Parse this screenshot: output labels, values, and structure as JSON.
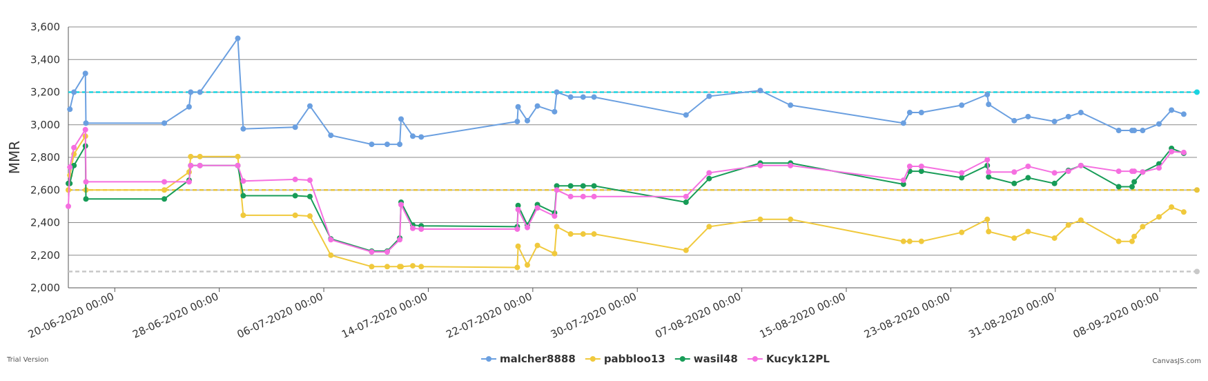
{
  "chart_data": {
    "type": "line",
    "y_title": "MMR",
    "x": [
      "16-06-2020 10:40",
      "16-06-2020 13:30",
      "16-06-2020 21:00",
      "17-06-2020 18:00",
      "17-06-2020 19:00",
      "23-06-2020 19:00",
      "25-06-2020 16:30",
      "25-06-2020 19:30",
      "26-06-2020 12:30",
      "29-06-2020 10:00",
      "29-06-2020 20:00",
      "03-07-2020 19:30",
      "04-07-2020 22:30",
      "06-07-2020 13:00",
      "09-07-2020 16:00",
      "10-07-2020 20:30",
      "11-07-2020 19:30",
      "11-07-2020 22:00",
      "12-07-2020 19:30",
      "13-07-2020 11:00",
      "20-07-2020 19:30",
      "20-07-2020 21:00",
      "21-07-2020 14:00",
      "22-07-2020 08:30",
      "23-07-2020 16:00",
      "23-07-2020 20:00",
      "24-07-2020 21:30",
      "25-07-2020 20:30",
      "26-07-2020 16:30",
      "02-08-2020 17:30",
      "04-08-2020 12:00",
      "08-08-2020 10:00",
      "10-08-2020 17:30",
      "19-08-2020 09:00",
      "19-08-2020 20:30",
      "20-08-2020 18:00",
      "23-08-2020 20:00",
      "25-08-2020 19:00",
      "25-08-2020 21:30",
      "27-08-2020 20:30",
      "28-08-2020 22:00",
      "30-08-2020 22:30",
      "01-09-2020 00:00",
      "01-09-2020 23:00",
      "04-09-2020 20:30",
      "05-09-2020 21:00",
      "06-09-2020 01:00",
      "06-09-2020 16:30",
      "07-09-2020 22:30",
      "08-09-2020 21:30",
      "09-09-2020 20:00"
    ],
    "xlim": [
      "16-06-2020 10:40",
      "10-09-2020 20:15"
    ],
    "xticks": [
      "20-06-2020 00:00",
      "28-06-2020 00:00",
      "06-07-2020 00:00",
      "14-07-2020 00:00",
      "22-07-2020 00:00",
      "30-07-2020 00:00",
      "07-08-2020 00:00",
      "15-08-2020 00:00",
      "23-08-2020 00:00",
      "31-08-2020 00:00",
      "08-09-2020 00:00"
    ],
    "ylim": [
      2000,
      3600
    ],
    "yticks": [
      {
        "value": 2000,
        "label": "2,000"
      },
      {
        "value": 2200,
        "label": "2,200"
      },
      {
        "value": 2400,
        "label": "2,400"
      },
      {
        "value": 2600,
        "label": "2,600"
      },
      {
        "value": 2800,
        "label": "2,800"
      },
      {
        "value": 3000,
        "label": "3,000"
      },
      {
        "value": 3200,
        "label": "3,200"
      },
      {
        "value": 3400,
        "label": "3,400"
      },
      {
        "value": 3600,
        "label": "3,600"
      }
    ],
    "grid": true,
    "legend": "bottom",
    "reference_lines": [
      {
        "value": 3200,
        "color": "#19d3e0"
      },
      {
        "value": 2600,
        "color": "#e8c43a"
      },
      {
        "value": 2100,
        "color": "#c8c8c8"
      }
    ],
    "series": [
      {
        "name": "malcher8888",
        "color": "#6a9fe0",
        "values": [
          null,
          3095,
          3200,
          3315,
          3010,
          3010,
          3110,
          3200,
          3200,
          3530,
          2975,
          2985,
          3115,
          2935,
          2880,
          2880,
          2880,
          3035,
          2930,
          2925,
          3020,
          3110,
          3025,
          3115,
          3080,
          3200,
          3170,
          3170,
          3170,
          3060,
          3175,
          3210,
          3120,
          3010,
          3075,
          3075,
          3120,
          3185,
          3125,
          3025,
          3050,
          3020,
          3050,
          3075,
          2965,
          2965,
          2965,
          2965,
          3005,
          3090,
          3065
        ]
      },
      {
        "name": "pabbloo13",
        "color": "#f0c93c",
        "values": [
          2600,
          2690,
          2820,
          2930,
          2600,
          2600,
          2710,
          2805,
          2805,
          2805,
          2445,
          2445,
          2440,
          2200,
          2130,
          2130,
          2130,
          2130,
          2135,
          2130,
          2125,
          2255,
          2140,
          2260,
          2210,
          2375,
          2330,
          2330,
          2330,
          2230,
          2375,
          2420,
          2420,
          2285,
          2285,
          2285,
          2340,
          2420,
          2345,
          2305,
          2345,
          2305,
          2385,
          2415,
          2285,
          2285,
          2315,
          2375,
          2435,
          2495,
          2465
        ]
      },
      {
        "name": "wasil48",
        "color": "#179c57",
        "values": [
          2640,
          2640,
          2750,
          2870,
          2545,
          2545,
          2660,
          2750,
          2750,
          2750,
          2565,
          2565,
          2560,
          2300,
          2225,
          2225,
          2305,
          2525,
          2385,
          2380,
          2375,
          2505,
          2385,
          2510,
          2460,
          2625,
          2625,
          2625,
          2625,
          2525,
          2670,
          2765,
          2765,
          2635,
          2715,
          2715,
          2675,
          2750,
          2680,
          2640,
          2675,
          2640,
          2720,
          2750,
          2620,
          2620,
          2650,
          2710,
          2760,
          2855,
          2825
        ]
      },
      {
        "name": "Kucyk12PL",
        "color": "#f56fe0",
        "values": [
          2500,
          2740,
          2860,
          2970,
          2650,
          2650,
          2650,
          2750,
          2750,
          2750,
          2655,
          2665,
          2660,
          2295,
          2220,
          2220,
          2295,
          2510,
          2365,
          2360,
          2360,
          2480,
          2370,
          2490,
          2440,
          2600,
          2560,
          2560,
          2560,
          2560,
          2705,
          2750,
          2750,
          2660,
          2745,
          2745,
          2705,
          2785,
          2710,
          2710,
          2745,
          2705,
          2715,
          2750,
          2715,
          2715,
          2715,
          2710,
          2735,
          2835,
          2830
        ]
      }
    ]
  },
  "footer": {
    "left": "Trial Version",
    "right": "CanvasJS.com"
  }
}
